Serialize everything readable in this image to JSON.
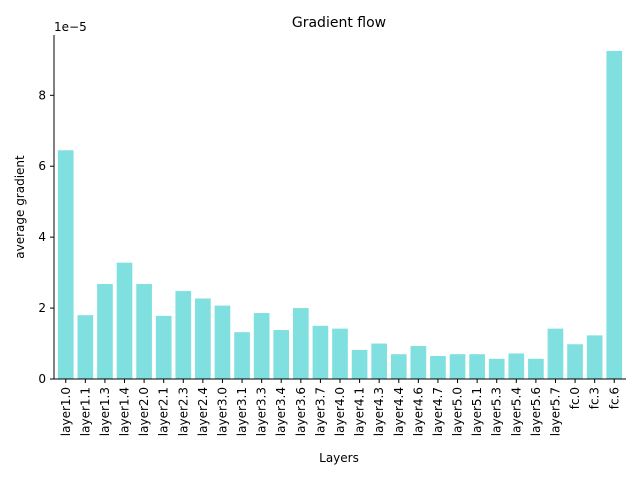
{
  "chart_data": {
    "type": "bar",
    "title": "Gradient flow",
    "xlabel": "Layers",
    "ylabel": "average gradient",
    "y_offset_label": "1e−5",
    "ylim": [
      0,
      9.7
    ],
    "yticks": [
      0,
      2,
      4,
      6,
      8
    ],
    "bar_color": "#7fe0df",
    "grid": false,
    "categories": [
      "layer1.0",
      "layer1.1",
      "layer1.3",
      "layer1.4",
      "layer2.0",
      "layer2.1",
      "layer2.3",
      "layer2.4",
      "layer3.0",
      "layer3.1",
      "layer3.3",
      "layer3.4",
      "layer3.6",
      "layer3.7",
      "layer4.0",
      "layer4.1",
      "layer4.3",
      "layer4.4",
      "layer4.6",
      "layer4.7",
      "layer5.0",
      "layer5.1",
      "layer5.3",
      "layer5.4",
      "layer5.6",
      "layer5.7",
      "fc.0",
      "fc.3",
      "fc.6"
    ],
    "values": [
      6.45,
      1.8,
      2.68,
      3.28,
      2.68,
      1.78,
      2.48,
      2.27,
      2.07,
      1.32,
      1.86,
      1.38,
      2.0,
      1.5,
      1.42,
      0.82,
      1.0,
      0.7,
      0.93,
      0.65,
      0.7,
      0.7,
      0.57,
      0.72,
      0.57,
      1.42,
      0.98,
      1.23,
      9.25
    ]
  }
}
